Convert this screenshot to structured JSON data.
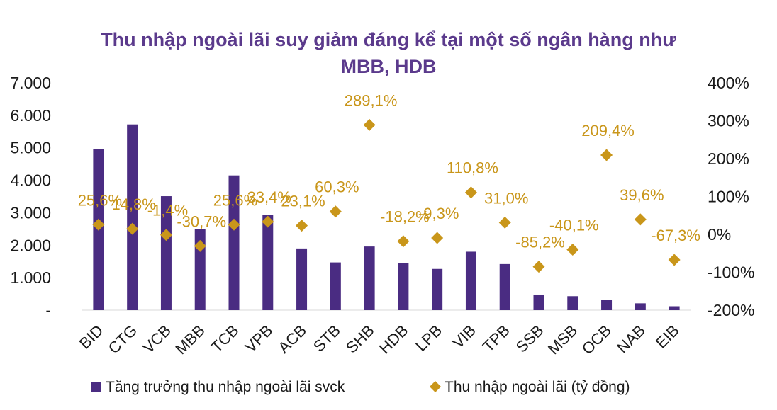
{
  "chart_data": {
    "type": "bar",
    "title_lines": [
      "Thu nhập ngoài lãi suy giảm đáng kể tại một số ngân hàng như",
      "MBB, HDB"
    ],
    "categories": [
      "BID",
      "CTG",
      "VCB",
      "MBB",
      "TCB",
      "VPB",
      "ACB",
      "STB",
      "SHB",
      "HDB",
      "LPB",
      "VIB",
      "TPB",
      "SSB",
      "MSB",
      "OCB",
      "NAB",
      "EIB"
    ],
    "series": [
      {
        "name": "Tăng trưởng thu nhập ngoài lãi svck",
        "kind": "bar",
        "axis": "left",
        "color": "#4a2c82",
        "values": [
          4950,
          5720,
          3510,
          2500,
          4150,
          2930,
          1900,
          1470,
          1960,
          1450,
          1270,
          1800,
          1420,
          480,
          430,
          320,
          210,
          120
        ]
      },
      {
        "name": "Thu nhập ngoài lãi (tỷ đồng)",
        "kind": "scatter",
        "axis": "right",
        "color": "#c9961a",
        "values": [
          25.6,
          14.8,
          -1.4,
          -30.7,
          25.6,
          33.4,
          23.1,
          60.3,
          289.1,
          -18.2,
          -9.3,
          110.8,
          31.0,
          -85.2,
          -40.1,
          209.4,
          39.6,
          -67.3
        ],
        "labels": [
          "25,6%",
          "14,8%",
          "-1,4%",
          "-30,7%",
          "25,6%",
          "33,4%",
          "23,1%",
          "60,3%",
          "289,1%",
          "-18,2%",
          "-9,3%",
          "110,8%",
          "31,0%",
          "-85,2%",
          "-40,1%",
          "209,4%",
          "39,6%",
          "-67,3%"
        ]
      }
    ],
    "y_left": {
      "ticks": [
        0,
        1000,
        2000,
        3000,
        4000,
        5000,
        6000,
        7000
      ],
      "tick_labels": [
        "-",
        "1.000",
        "2.000",
        "3.000",
        "4.000",
        "5.000",
        "6.000",
        "7.000"
      ],
      "range": [
        0,
        7000
      ]
    },
    "y_right": {
      "ticks": [
        -200,
        -100,
        0,
        100,
        200,
        300,
        400
      ],
      "tick_labels": [
        "-200%",
        "-100%",
        "0%",
        "100%",
        "200%",
        "300%",
        "400%"
      ],
      "range": [
        -200,
        400
      ]
    },
    "grid": false,
    "legend_position": "bottom",
    "colors": {
      "title": "#5b3a8c",
      "axis_text": "#1a1a1a",
      "label_text": "#c9961a",
      "axis_line": "#d9d9d9"
    }
  }
}
